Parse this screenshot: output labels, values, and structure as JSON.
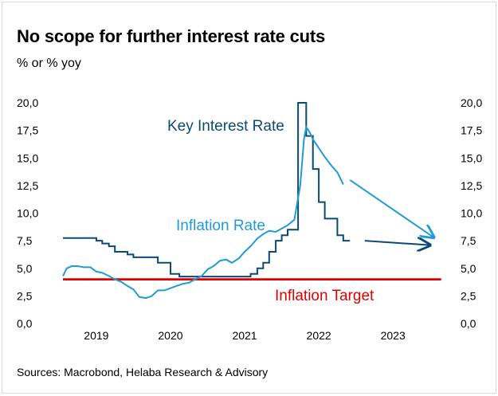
{
  "header": {
    "title": "No scope for further interest rate cuts",
    "subtitle": "% or % yoy"
  },
  "footer": {
    "source": "Sources: Macrobond, Helaba Research & Advisory"
  },
  "colors": {
    "key_rate": "#0b4a75",
    "inflation": "#1f9bd7",
    "target": "#e00000"
  },
  "chart_data": {
    "type": "line",
    "title": "No scope for further interest rate cuts",
    "ylabel": "% or % yoy",
    "ylim": [
      0,
      20
    ],
    "xlim": [
      2018.55,
      2023.75
    ],
    "x_ticks": [
      {
        "value": 2019.0,
        "label": "2019"
      },
      {
        "value": 2020.0,
        "label": "2020"
      },
      {
        "value": 2021.0,
        "label": "2021"
      },
      {
        "value": 2022.0,
        "label": "2022"
      },
      {
        "value": 2023.0,
        "label": "2023"
      }
    ],
    "y_ticks": [
      {
        "value": 0,
        "label": "0,0"
      },
      {
        "value": 2.5,
        "label": "2,5"
      },
      {
        "value": 5,
        "label": "5,0"
      },
      {
        "value": 7.5,
        "label": "7,5"
      },
      {
        "value": 10,
        "label": "10,0"
      },
      {
        "value": 12.5,
        "label": "12,5"
      },
      {
        "value": 15,
        "label": "15,0"
      },
      {
        "value": 17.5,
        "label": "17,5"
      },
      {
        "value": 20,
        "label": "20,0"
      }
    ],
    "grid": false,
    "series": [
      {
        "name": "Key Interest Rate",
        "step": true,
        "x": [
          2018.55,
          2019.0,
          2019.08,
          2019.17,
          2019.25,
          2019.33,
          2019.42,
          2019.5,
          2019.67,
          2019.83,
          2020.0,
          2020.12,
          2020.25,
          2020.33,
          2020.42,
          2020.5,
          2020.58,
          2020.83,
          2021.0,
          2021.08,
          2021.17,
          2021.25,
          2021.33,
          2021.42,
          2021.5,
          2021.58,
          2021.67,
          2021.72,
          2021.83,
          2021.92,
          2022.0,
          2022.08,
          2022.25,
          2022.33,
          2022.42
        ],
        "y": [
          7.75,
          7.5,
          7.25,
          7.0,
          6.5,
          6.5,
          6.25,
          6.0,
          6.0,
          5.5,
          4.5,
          4.25,
          4.25,
          4.25,
          4.25,
          4.25,
          4.25,
          4.25,
          4.25,
          4.5,
          5.0,
          5.5,
          6.5,
          7.5,
          8.0,
          8.5,
          8.5,
          20.0,
          17.0,
          14.0,
          11.0,
          9.5,
          8.0,
          7.5,
          7.5
        ]
      },
      {
        "name": "Inflation Rate",
        "step": false,
        "x": [
          2018.55,
          2018.6,
          2018.67,
          2018.75,
          2018.83,
          2018.92,
          2019.0,
          2019.08,
          2019.17,
          2019.25,
          2019.33,
          2019.42,
          2019.5,
          2019.58,
          2019.67,
          2019.75,
          2019.83,
          2019.92,
          2020.0,
          2020.08,
          2020.17,
          2020.25,
          2020.33,
          2020.42,
          2020.5,
          2020.58,
          2020.67,
          2020.75,
          2020.83,
          2020.92,
          2021.0,
          2021.08,
          2021.17,
          2021.25,
          2021.33,
          2021.42,
          2021.5,
          2021.58,
          2021.67,
          2021.75,
          2021.8,
          2021.83,
          2021.88,
          2021.92,
          2022.0,
          2022.08,
          2022.17,
          2022.25,
          2022.33
        ],
        "y": [
          4.3,
          5.0,
          5.2,
          5.2,
          5.1,
          5.1,
          4.7,
          4.6,
          4.3,
          4.0,
          3.8,
          3.4,
          3.1,
          2.4,
          2.3,
          2.5,
          3.0,
          3.0,
          3.2,
          3.4,
          3.6,
          3.7,
          4.0,
          4.3,
          4.9,
          5.2,
          5.7,
          5.8,
          5.5,
          5.9,
          6.5,
          7.0,
          7.7,
          8.1,
          8.4,
          8.3,
          8.6,
          8.9,
          9.4,
          12.5,
          16.7,
          17.8,
          17.3,
          16.7,
          15.9,
          15.1,
          14.3,
          13.7,
          12.6
        ]
      },
      {
        "name": "Inflation Target",
        "step": false,
        "x": [
          2018.55,
          2023.65
        ],
        "y": [
          4.0,
          4.0
        ]
      }
    ],
    "projections": [
      {
        "series": "Inflation Rate",
        "from": [
          2022.42,
          13.0
        ],
        "to": [
          2023.55,
          7.8
        ]
      },
      {
        "series": "Key Interest Rate",
        "from": [
          2022.62,
          7.5
        ],
        "to": [
          2023.5,
          7.1
        ]
      }
    ],
    "annotations": [
      {
        "series": "Key Interest Rate",
        "text": "Key Interest Rate"
      },
      {
        "series": "Inflation Rate",
        "text": "Inflation Rate"
      },
      {
        "series": "Inflation Target",
        "text": "Inflation Target"
      }
    ]
  }
}
